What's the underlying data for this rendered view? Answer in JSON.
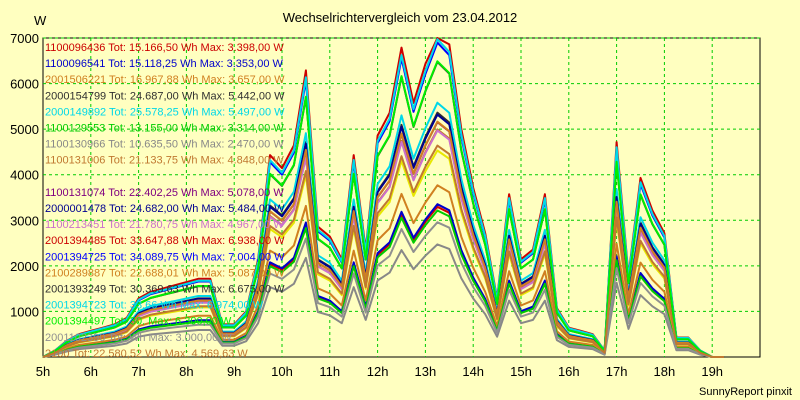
{
  "chart_data": {
    "type": "line",
    "title": "Wechselrichtervergleich vom 23.04.2012",
    "ylabel": "W",
    "xlabel": "",
    "ylim": [
      0,
      7000
    ],
    "yticks": [
      1000,
      2000,
      3000,
      4000,
      5000,
      6000,
      7000
    ],
    "xlim": [
      5,
      20
    ],
    "xticks": [
      5,
      6,
      7,
      8,
      9,
      10,
      11,
      12,
      13,
      14,
      15,
      16,
      17,
      18,
      19
    ],
    "xtick_labels": [
      "5h",
      "6h",
      "7h",
      "8h",
      "9h",
      "10h",
      "11h",
      "12h",
      "13h",
      "14h",
      "15h",
      "16h",
      "17h",
      "18h",
      "19h"
    ],
    "grid": true,
    "legend_position": "top-left inside",
    "x": [
      5,
      5.25,
      5.5,
      5.75,
      6,
      6.25,
      6.5,
      6.75,
      7,
      7.25,
      7.5,
      7.75,
      8,
      8.25,
      8.5,
      8.75,
      9,
      9.25,
      9.5,
      9.75,
      10,
      10.25,
      10.5,
      10.75,
      11,
      11.25,
      11.5,
      11.75,
      12,
      12.25,
      12.5,
      12.75,
      13,
      13.25,
      13.5,
      13.75,
      14,
      14.25,
      14.5,
      14.75,
      15,
      15.25,
      15.5,
      15.75,
      16,
      16.25,
      16.5,
      16.75,
      17,
      17.25,
      17.5,
      17.75,
      18,
      18.25,
      18.5,
      18.75,
      19,
      19.25
    ],
    "series": [
      {
        "name": "1100096436 Tot: 15.166,50 Wh Max: 3.398,00 W",
        "color": "#cc0000",
        "peak": 3398
      },
      {
        "name": "1100096541 Tot: 15.118,25 Wh Max: 3.353,00 W",
        "color": "#0000cc",
        "peak": 3353
      },
      {
        "name": "2001506221 Tot: 16.967,88 Wh Max: 3.657,00 W",
        "color": "#d08020",
        "peak": 3657
      },
      {
        "name": "2000154799 Tot: 24.687,00 Wh Max: 5.442,00 W",
        "color": "#303030",
        "peak": 5442
      },
      {
        "name": "2000149892 Tot: 25.578,25 Wh Max: 5.497,00 W",
        "color": "#00d8e8",
        "peak": 5497
      },
      {
        "name": "1100129553 Tot: 13.155,00 Wh Max: 3.314,00 W",
        "color": "#00cc00",
        "peak": 3314
      },
      {
        "name": "1100130966 Tot: 10.635,50 Wh Max: 2.470,00 W",
        "color": "#888888",
        "peak": 2470
      },
      {
        "name": "1100131006 Tot: 21.133,75 Wh Max: 4.848,00 W",
        "color": "#c07830",
        "peak": 4848
      },
      {
        "name": "",
        "color": "#e8e800",
        "peak": 4600
      },
      {
        "name": "1100131074 Tot: 22.402,25 Wh Max: 5.078,00 W",
        "color": "#800080",
        "peak": 5078
      },
      {
        "name": "2000001478 Tot: 24.682,00 Wh Max: 5.484,00 W",
        "color": "#000090",
        "peak": 5484
      },
      {
        "name": "1100213451 Tot: 21.780,75 Wh Max: 4.967,00 W",
        "color": "#cc70cc",
        "peak": 4967
      },
      {
        "name": "2001394485 Tot: 33.647,88 Wh Max: 6.938,00 W",
        "color": "#cc0000",
        "peak": 6938
      },
      {
        "name": "2001394725 Tot: 34.089,75 Wh Max: 7.004,00 W",
        "color": "#0000ff",
        "peak": 7004
      },
      {
        "name": "2100289887 Tot: 22.688,01 Wh Max: 5.087,00 W",
        "color": "#d08020",
        "peak": 5087
      },
      {
        "name": "2001393249 Tot: 30.369,63 Wh Max: 6.675,00 W",
        "color": "#303030",
        "peak": 6675
      },
      {
        "name": "2001394723 Tot: 33.66 Wh Max: 6.974,00 W",
        "color": "#00d8e8",
        "peak": 6974
      },
      {
        "name": "2001394497 Tot: 30. Max: 6.300,00 W",
        "color": "#00ee00",
        "peak": 6300
      },
      {
        "name": "2001102390 Tot: Wh Max: 3.000,00 W",
        "color": "#909090",
        "peak": 3000
      },
      {
        "name": "2100 Tot: 22.580,52 Wh Max: 4.569,63 W",
        "color": "#c07830",
        "peak": 4570
      }
    ],
    "shape_normalized": [
      0.0,
      0.02,
      0.05,
      0.07,
      0.08,
      0.09,
      0.1,
      0.12,
      0.18,
      0.2,
      0.21,
      0.22,
      0.23,
      0.24,
      0.24,
      0.1,
      0.1,
      0.14,
      0.3,
      0.62,
      0.58,
      0.65,
      0.88,
      0.4,
      0.37,
      0.3,
      0.62,
      0.33,
      0.68,
      0.75,
      0.95,
      0.78,
      0.9,
      1.0,
      0.96,
      0.7,
      0.52,
      0.38,
      0.18,
      0.5,
      0.3,
      0.33,
      0.5,
      0.15,
      0.09,
      0.08,
      0.07,
      0.02,
      0.66,
      0.25,
      0.55,
      0.45,
      0.38,
      0.06,
      0.06,
      0.02,
      0.0,
      0.0
    ]
  },
  "footer": "SunnyReport pinxit"
}
